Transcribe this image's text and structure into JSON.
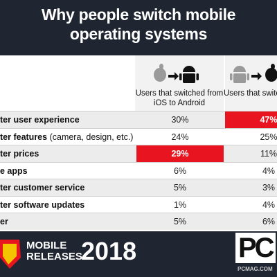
{
  "header": {
    "title_lines": [
      "Why people switch mobile",
      "operating systems"
    ]
  },
  "table": {
    "columns": [
      "Users that switched from iOS to Android",
      "Users that switch from Android to i"
    ],
    "rows": [
      {
        "label": "ter user experience",
        "values": [
          "30%",
          {
            "text": "47%",
            "highlight": true
          }
        ]
      },
      {
        "label": "ter features",
        "note": "(camera, design, etc.)",
        "values": [
          "24%",
          "25%"
        ]
      },
      {
        "label": "ter prices",
        "values": [
          {
            "text": "29%",
            "highlight": true
          },
          "11%"
        ]
      },
      {
        "label": "e apps",
        "values": [
          "6%",
          "4%"
        ]
      },
      {
        "label": "ter customer service",
        "values": [
          "5%",
          "3%"
        ]
      },
      {
        "label": "ter software updates",
        "values": [
          "1%",
          "4%"
        ]
      },
      {
        "label": "er",
        "values": [
          "5%",
          "6%"
        ]
      }
    ]
  },
  "footer": {
    "badge_lines": [
      "MOBILE",
      "RELEASES"
    ],
    "year": "2018",
    "logo": "PC",
    "site": "PCMAG.COM"
  }
}
